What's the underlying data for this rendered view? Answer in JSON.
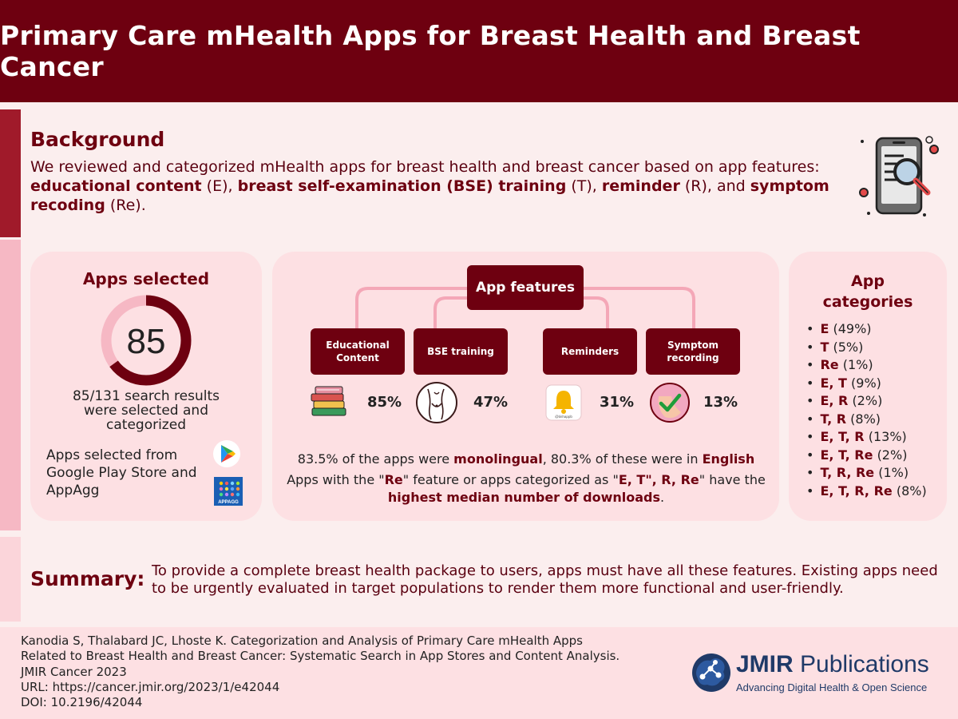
{
  "header": {
    "title": "Primary Care mHealth Apps for Breast Health and Breast Cancer"
  },
  "background": {
    "title": "Background",
    "intro": "We reviewed and categorized mHealth apps for breast health and breast cancer based on app features:",
    "f1": "educational content",
    "f1_abbr": " (E), ",
    "f2": "breast self-examination (BSE) training",
    "f2_abbr": " (T), ",
    "f3": "reminder",
    "f3_abbr": " (R), and ",
    "f4": "symptom recoding",
    "f4_abbr": " (Re).",
    "icon": "phone-search-icon"
  },
  "apps_selected": {
    "title": "Apps selected",
    "count": "85",
    "fraction": 0.649,
    "caption": "85/131 search results were selected and categorized",
    "source": "Apps selected from Google Play Store and AppAgg",
    "appagg_label": "APPAGG"
  },
  "features": {
    "title": "App features",
    "items": [
      {
        "label": "Educational Content",
        "pct": "85%",
        "icon": "books-icon"
      },
      {
        "label": "BSE training",
        "pct": "47%",
        "icon": "bse-exam-icon"
      },
      {
        "label": "Reminders",
        "pct": "31%",
        "icon": "bell-icon"
      },
      {
        "label": "Symptom recording",
        "pct": "13%",
        "icon": "checkmark-icon"
      }
    ],
    "reminder_icon_text": "@tinhappb",
    "note1_a": "83.5% of the apps were ",
    "note1_b": "monolingual",
    "note1_c": ", 80.3% of these were in ",
    "note1_d": "English",
    "note2_a": "Apps with the \"",
    "note2_b": "Re",
    "note2_c": "\" feature or apps categorized as \"",
    "note2_d": "E, T\", R, Re",
    "note2_e": "\" have the",
    "note3_a": "highest median number of downloads",
    "note3_b": "."
  },
  "categories": {
    "title": "App categories",
    "items": [
      {
        "code": "E",
        "pct": "(49%)"
      },
      {
        "code": "T",
        "pct": "(5%)"
      },
      {
        "code": "Re",
        "pct": "(1%)"
      },
      {
        "code": "E, T",
        "pct": "(9%)"
      },
      {
        "code": "E, R",
        "pct": "(2%)"
      },
      {
        "code": "T, R",
        "pct": "(8%)"
      },
      {
        "code": "E, T, R",
        "pct": "(13%)"
      },
      {
        "code": "E, T, Re",
        "pct": "(2%)"
      },
      {
        "code": "T, R, Re",
        "pct": "(1%)"
      },
      {
        "code": "E, T, R, Re",
        "pct": "(8%)"
      }
    ]
  },
  "summary": {
    "label": "Summary:",
    "text": "To provide a complete breast health package to users, apps must have all these features. Existing apps need to be urgently evaluated in target populations to render them more functional and user-friendly."
  },
  "citation": {
    "line1": "Kanodia S, Thalabard JC, Lhoste K. Categorization and Analysis of Primary Care mHealth Apps",
    "line2": "Related to Breast Health and Breast Cancer: Systematic Search in App Stores and Content Analysis.",
    "line3": "JMIR Cancer 2023",
    "line4": "URL: https://cancer.jmir.org/2023/1/e42044",
    "line5": "DOI: 10.2196/42044"
  },
  "publisher": {
    "name_bold": "JMIR",
    "name_rest": " Publications",
    "tagline": "Advancing Digital Health & Open Science"
  },
  "colors": {
    "maroon": "#6e0010",
    "pink_card": "#fde0e3",
    "page_bg": "#fbeeee",
    "ring_light": "#f6b8c4",
    "connector": "#f4a7b7",
    "jmir_blue": "#1f3a68"
  }
}
